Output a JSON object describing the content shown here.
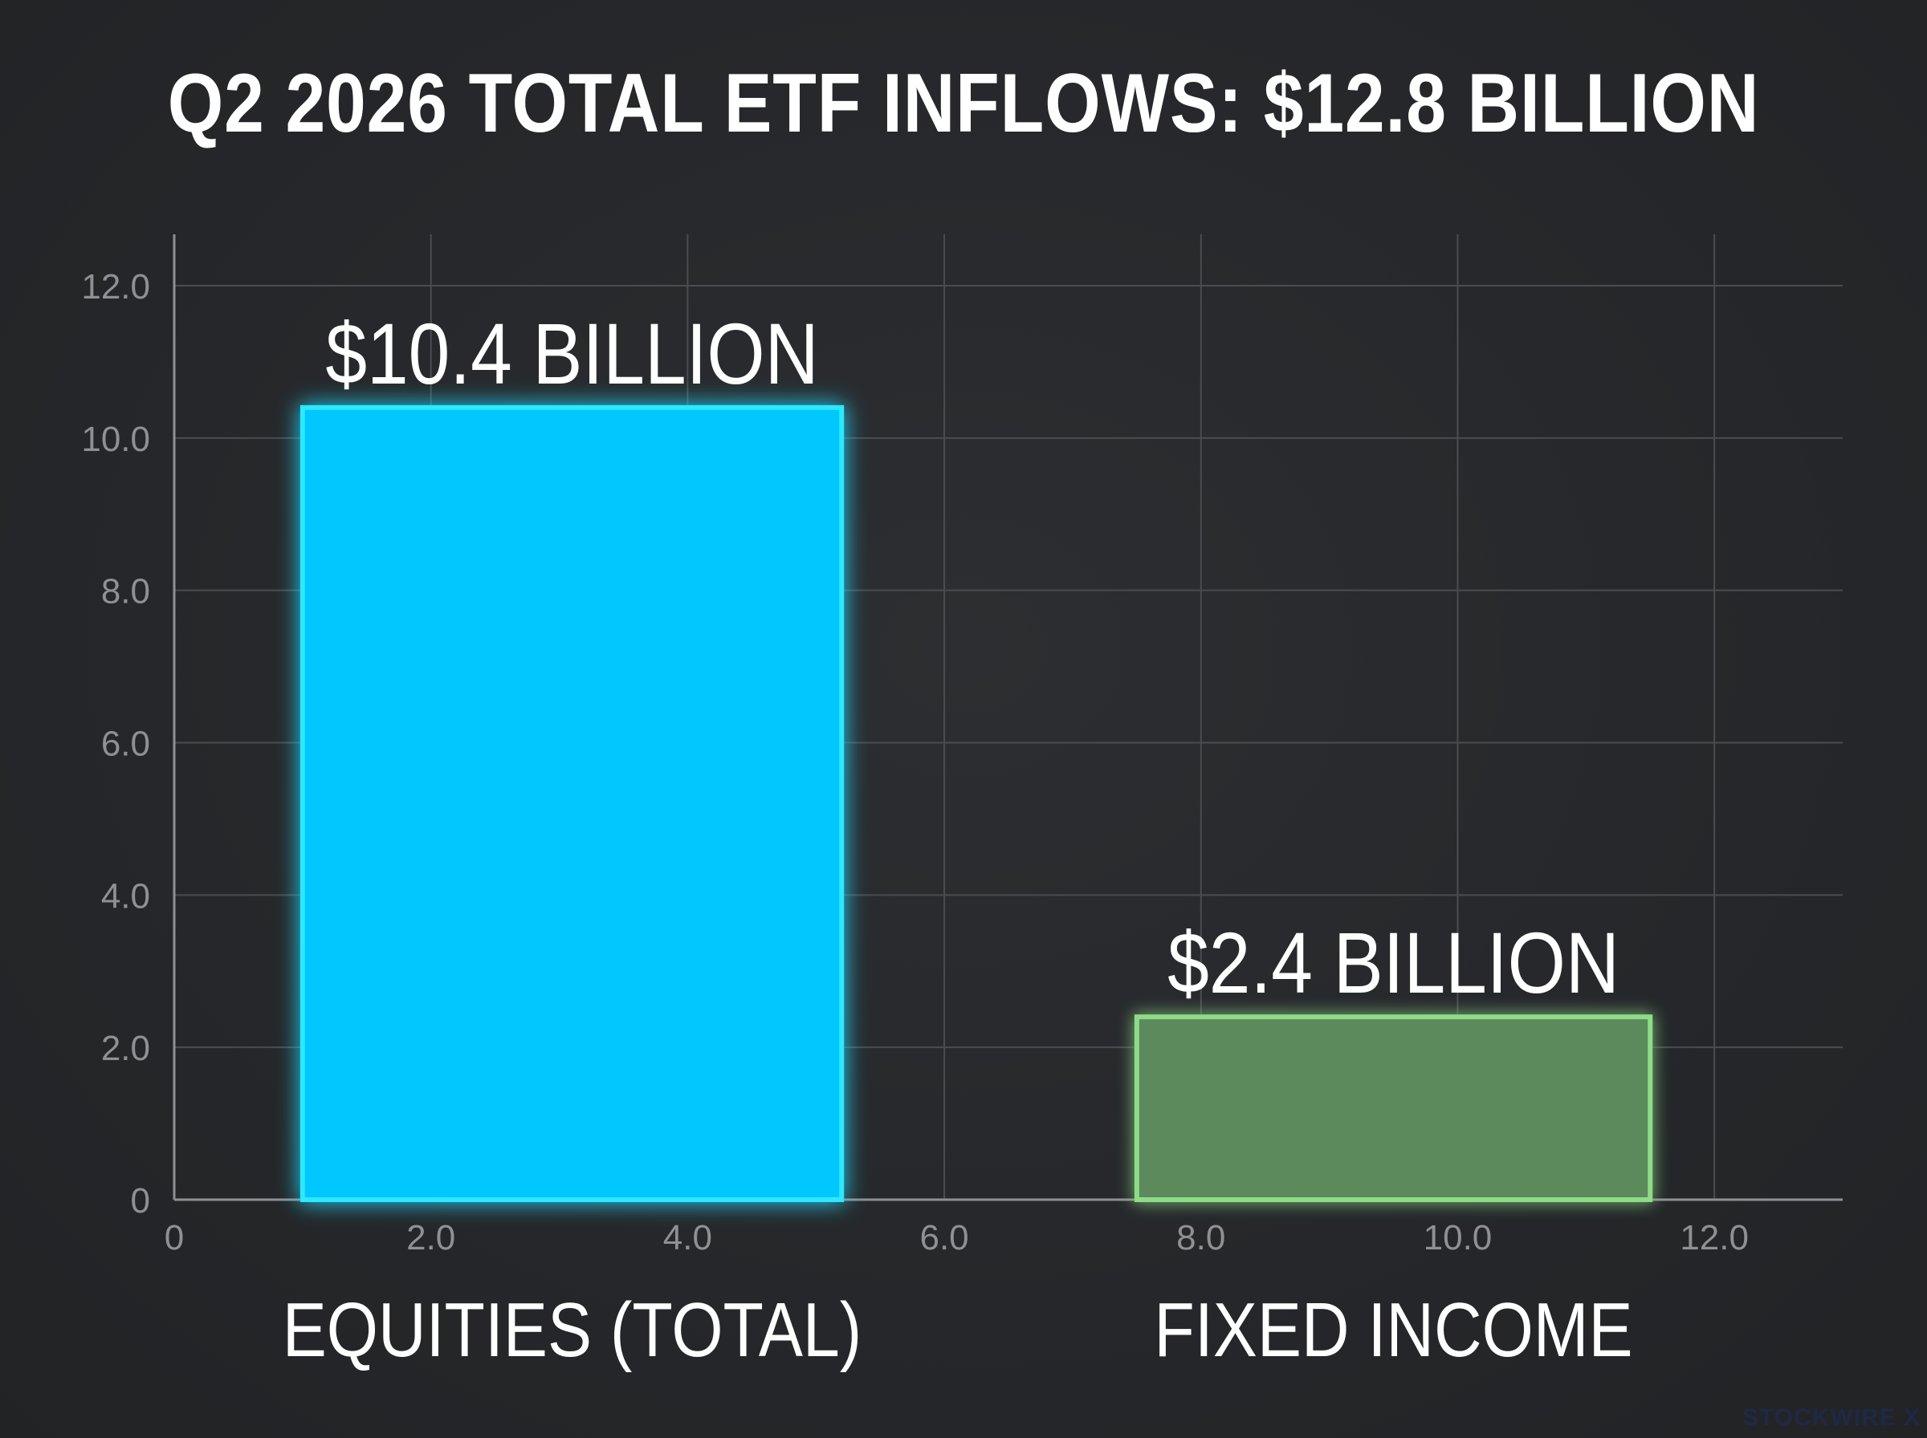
{
  "chart_data": {
    "type": "bar",
    "title": "Q2 2026 TOTAL ETF INFLOWS: $12.8 BILLION",
    "categories": [
      "EQUITIES (TOTAL)",
      "FIXED INCOME"
    ],
    "values": [
      10.4,
      2.4
    ],
    "data_labels": [
      "$10.4 BILLION",
      "$2.4 BILLION"
    ],
    "bar_x_ranges": [
      [
        1.0,
        5.2
      ],
      [
        7.5,
        11.5
      ]
    ],
    "y_ticks": [
      "0",
      "2.0",
      "4.0",
      "6.0",
      "8.0",
      "10.0",
      "12.0"
    ],
    "x_ticks": [
      "0",
      "2.0",
      "4.0",
      "6.0",
      "8.0",
      "10.0",
      "12.0"
    ],
    "xlim": [
      0,
      13.0
    ],
    "ylim": [
      0,
      12.0
    ],
    "grid": true,
    "colors": {
      "background": "#26282b",
      "equities": "#00c8ff",
      "equities_glow": "#2ee8ff",
      "fixed_income_fill": "#5b8a5c",
      "fixed_income_edge": "#8fdc88",
      "grid": "#4a4c50",
      "tick_text": "#8e9094",
      "axis": "#8e9094"
    }
  },
  "watermark": "STOCKWIRE X"
}
